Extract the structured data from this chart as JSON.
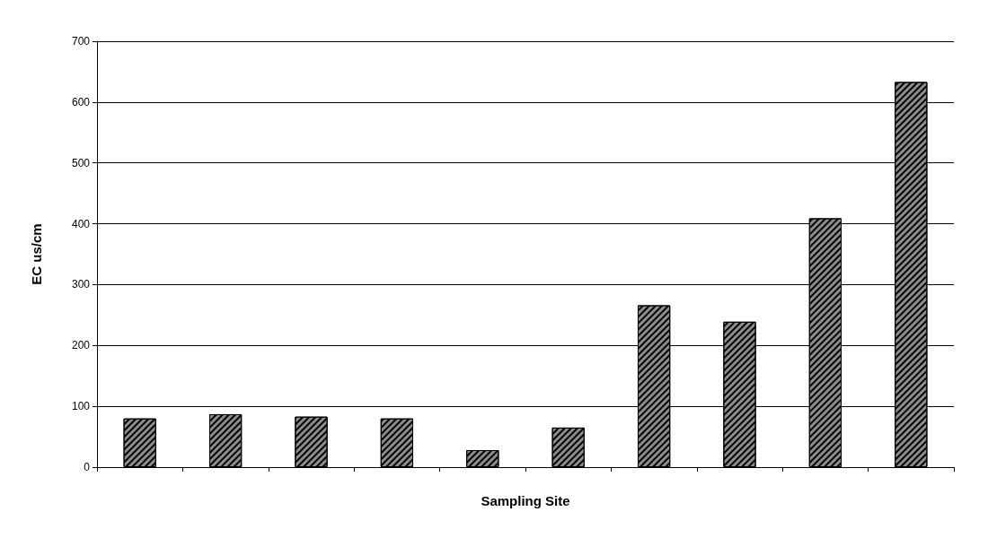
{
  "chart_data": {
    "type": "bar",
    "xlabel": "Sampling Site",
    "ylabel": "EC us/cm",
    "categories": [
      null,
      null,
      null,
      null,
      null,
      null,
      null,
      null,
      null,
      null
    ],
    "values": [
      80,
      87,
      83,
      80,
      28,
      65,
      266,
      239,
      409,
      633
    ],
    "color": "#8c8c8c",
    "ylim": [
      0,
      700
    ],
    "yticks": [
      0,
      100,
      200,
      300,
      400,
      500,
      600,
      700
    ],
    "grid": "y"
  }
}
